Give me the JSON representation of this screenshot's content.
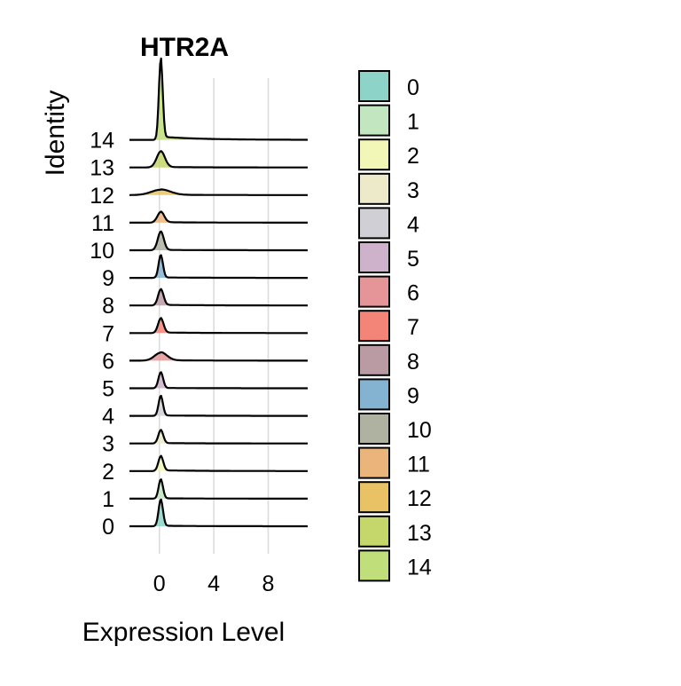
{
  "chart_data": {
    "type": "ridgeline",
    "title": "HTR2A",
    "xlabel": "Expression Level",
    "ylabel": "Identity",
    "xlim": [
      -2.2,
      10.9
    ],
    "xticks": [
      0,
      4,
      8
    ],
    "grid": "vertical-major",
    "legend_position": "right",
    "series": [
      {
        "name": "0",
        "color": "#8DD3C7",
        "peak": 1.0,
        "spread": 0.16,
        "tail": 0.02
      },
      {
        "name": "1",
        "color": "#C2E6C0",
        "peak": 0.72,
        "spread": 0.16,
        "tail": 0.02
      },
      {
        "name": "2",
        "color": "#F2F6B6",
        "peak": 0.55,
        "spread": 0.18,
        "tail": 0.05
      },
      {
        "name": "3",
        "color": "#ECEAC8",
        "peak": 0.5,
        "spread": 0.18,
        "tail": 0.03
      },
      {
        "name": "4",
        "color": "#D0CFD6",
        "peak": 0.75,
        "spread": 0.16,
        "tail": 0.02
      },
      {
        "name": "5",
        "color": "#CEB1CB",
        "peak": 0.6,
        "spread": 0.17,
        "tail": 0.02
      },
      {
        "name": "6",
        "color": "#E59598",
        "peak": 0.3,
        "spread": 0.45,
        "tail": 0.06
      },
      {
        "name": "7",
        "color": "#F28478",
        "peak": 0.55,
        "spread": 0.2,
        "tail": 0.04
      },
      {
        "name": "8",
        "color": "#BA9BA4",
        "peak": 0.6,
        "spread": 0.2,
        "tail": 0.04
      },
      {
        "name": "9",
        "color": "#84B3D2",
        "peak": 0.85,
        "spread": 0.16,
        "tail": 0.02
      },
      {
        "name": "10",
        "color": "#AFB2A1",
        "peak": 0.7,
        "spread": 0.22,
        "tail": 0.02
      },
      {
        "name": "11",
        "color": "#EBB47B",
        "peak": 0.4,
        "spread": 0.25,
        "tail": 0.05
      },
      {
        "name": "12",
        "color": "#E9C266",
        "peak": 0.2,
        "spread": 0.7,
        "tail": 0.07
      },
      {
        "name": "13",
        "color": "#C5D66A",
        "peak": 0.6,
        "spread": 0.3,
        "tail": 0.03
      },
      {
        "name": "14",
        "color": "#C0DE7A",
        "peak": 3.0,
        "spread": 0.14,
        "tail": 0.04
      }
    ]
  }
}
